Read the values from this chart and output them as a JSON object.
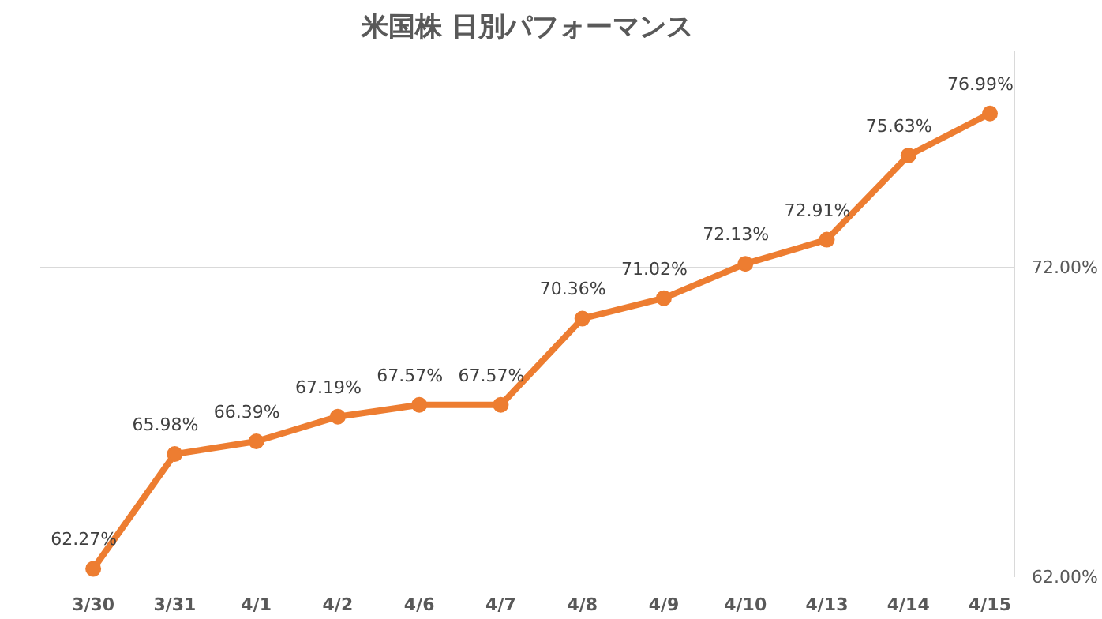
{
  "chart_data": {
    "type": "line",
    "title": "米国株 日別パフォーマンス",
    "categories": [
      "3/30",
      "3/31",
      "4/1",
      "4/2",
      "4/6",
      "4/7",
      "4/8",
      "4/9",
      "4/10",
      "4/13",
      "4/14",
      "4/15"
    ],
    "series": [
      {
        "color": "#ed7d31",
        "values": [
          62.27,
          65.98,
          66.39,
          67.19,
          67.57,
          67.57,
          70.36,
          71.02,
          72.13,
          72.91,
          75.63,
          76.99
        ],
        "value_labels": [
          "62.27%",
          "65.98%",
          "66.39%",
          "67.19%",
          "67.57%",
          "67.57%",
          "70.36%",
          "71.02%",
          "72.13%",
          "72.91%",
          "75.63%",
          "76.99%"
        ]
      }
    ],
    "ylim": [
      62,
      79
    ],
    "yticks": [
      {
        "value": 62,
        "label": "62.00%"
      },
      {
        "value": 72,
        "label": "72.00%"
      }
    ],
    "grid": "y",
    "marker": "circle",
    "line_style": "solid"
  }
}
